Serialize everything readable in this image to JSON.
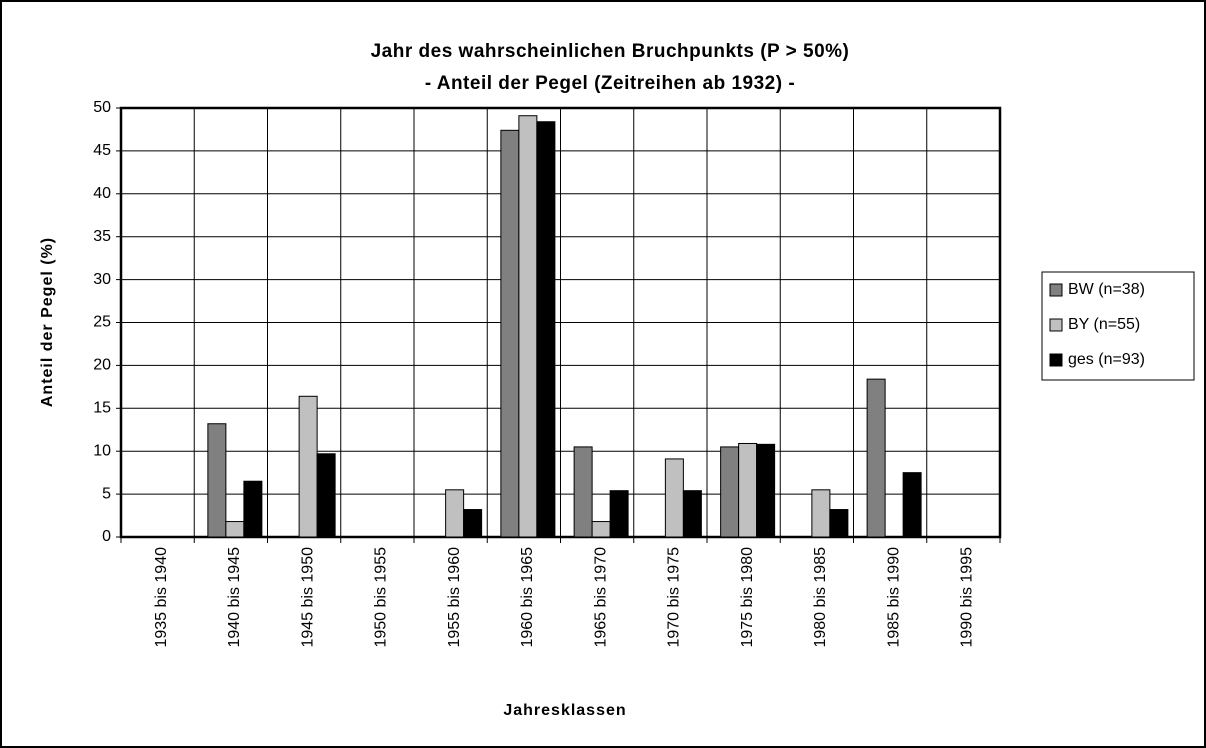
{
  "chart_data": {
    "type": "bar",
    "title": "Jahr des wahrscheinlichen Bruchpunkts (P > 50%)",
    "subtitle": "- Anteil der Pegel (Zeitreihen ab 1932) -",
    "x_label": "Jahresklassen",
    "y_label": "Anteil der Pegel (%)",
    "categories": [
      "1935 bis 1940",
      "1940 bis 1945",
      "1945 bis 1950",
      "1950 bis 1955",
      "1955 bis 1960",
      "1960 bis 1965",
      "1965 bis 1970",
      "1970 bis 1975",
      "1975 bis 1980",
      "1980 bis 1985",
      "1985 bis 1990",
      "1990 bis 1995"
    ],
    "series": [
      {
        "name": "BW (n=38)",
        "color": "#808080",
        "values": [
          0,
          13.2,
          0,
          0,
          0,
          47.4,
          10.5,
          0,
          10.5,
          0,
          18.4,
          0
        ]
      },
      {
        "name": "BY (n=55)",
        "color": "#c0c0c0",
        "values": [
          0,
          1.8,
          16.4,
          0,
          5.5,
          49.1,
          1.8,
          9.1,
          10.9,
          5.5,
          0,
          0
        ]
      },
      {
        "name": "ges (n=93)",
        "color": "#000000",
        "values": [
          0,
          6.5,
          9.7,
          0,
          3.2,
          48.4,
          5.4,
          5.4,
          10.8,
          3.2,
          7.5,
          0
        ]
      }
    ],
    "ylim": [
      0,
      50
    ],
    "yticks": [
      0,
      5,
      10,
      15,
      20,
      25,
      30,
      35,
      40,
      45,
      50
    ],
    "grid": true,
    "legend": "right"
  }
}
